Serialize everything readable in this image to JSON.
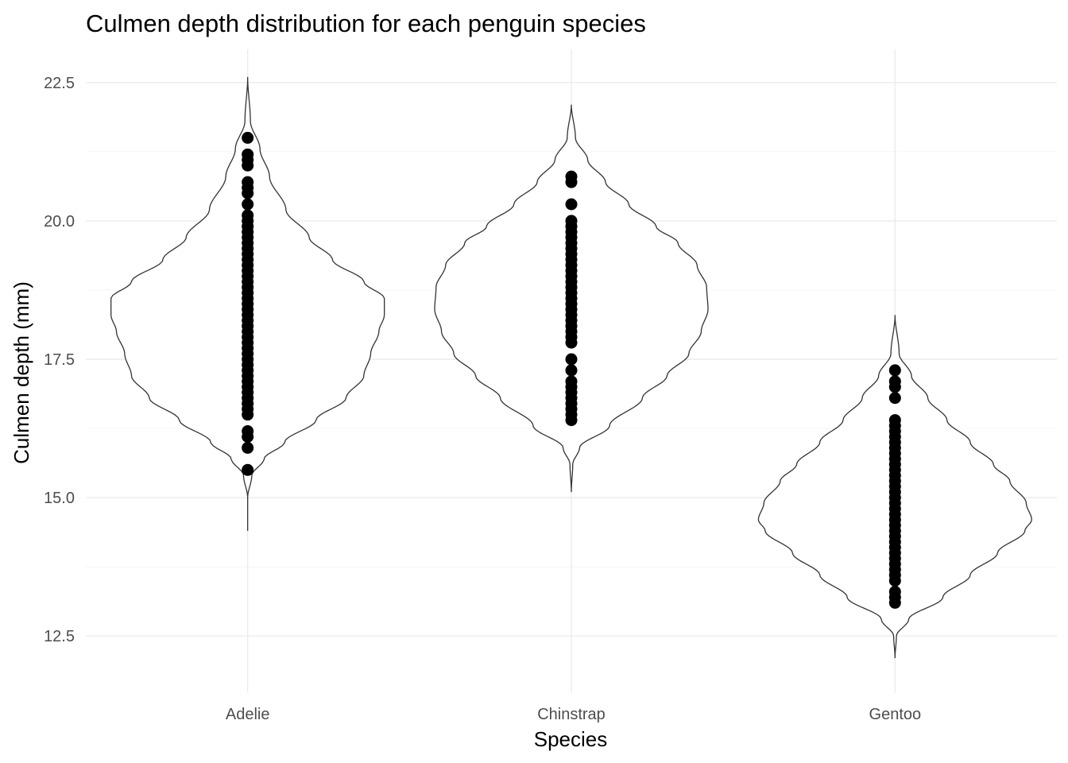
{
  "chart_data": {
    "type": "violin",
    "title": "Culmen depth distribution for each penguin species",
    "xlabel": "Species",
    "ylabel": "Culmen depth (mm)",
    "ylim": [
      11.9,
      23.1
    ],
    "yticks": [
      12.5,
      15.0,
      17.5,
      20.0,
      22.5
    ],
    "ytick_labels": [
      "12.5",
      "15.0",
      "17.5",
      "20.0",
      "22.5"
    ],
    "grid": true,
    "legend": "none",
    "categories": [
      "Adelie",
      "Chinstrap",
      "Gentoo"
    ],
    "series": [
      {
        "category": "Adelie",
        "violin": {
          "y_min": 14.4,
          "y_max": 22.6,
          "profile": [
            [
              14.4,
              0.0
            ],
            [
              15.0,
              0.0
            ],
            [
              15.4,
              0.03
            ],
            [
              15.7,
              0.12
            ],
            [
              16.0,
              0.27
            ],
            [
              16.4,
              0.5
            ],
            [
              16.8,
              0.72
            ],
            [
              17.2,
              0.85
            ],
            [
              17.6,
              0.9
            ],
            [
              18.0,
              0.96
            ],
            [
              18.3,
              1.0
            ],
            [
              18.6,
              1.0
            ],
            [
              18.9,
              0.85
            ],
            [
              19.3,
              0.62
            ],
            [
              19.7,
              0.45
            ],
            [
              20.2,
              0.28
            ],
            [
              20.8,
              0.16
            ],
            [
              21.3,
              0.09
            ],
            [
              21.8,
              0.02
            ],
            [
              22.6,
              0.0
            ]
          ]
        },
        "points": [
          15.5,
          15.9,
          16.1,
          16.2,
          16.5,
          16.6,
          16.7,
          16.8,
          16.9,
          17.0,
          17.1,
          17.2,
          17.3,
          17.4,
          17.5,
          17.6,
          17.7,
          17.8,
          17.9,
          18.0,
          18.1,
          18.2,
          18.3,
          18.4,
          18.5,
          18.6,
          18.7,
          18.8,
          18.9,
          19.0,
          19.1,
          19.2,
          19.3,
          19.4,
          19.5,
          19.6,
          19.7,
          19.8,
          19.9,
          20.0,
          20.1,
          20.3,
          20.5,
          20.6,
          20.7,
          21.0,
          21.1,
          21.2,
          21.5
        ]
      },
      {
        "category": "Chinstrap",
        "violin": {
          "y_min": 15.1,
          "y_max": 22.1,
          "profile": [
            [
              15.1,
              0.0
            ],
            [
              15.6,
              0.01
            ],
            [
              15.9,
              0.06
            ],
            [
              16.3,
              0.28
            ],
            [
              16.8,
              0.52
            ],
            [
              17.2,
              0.7
            ],
            [
              17.6,
              0.86
            ],
            [
              18.0,
              0.95
            ],
            [
              18.4,
              1.0
            ],
            [
              18.8,
              0.99
            ],
            [
              19.2,
              0.92
            ],
            [
              19.6,
              0.78
            ],
            [
              19.9,
              0.62
            ],
            [
              20.3,
              0.42
            ],
            [
              20.7,
              0.25
            ],
            [
              21.1,
              0.12
            ],
            [
              21.5,
              0.03
            ],
            [
              22.1,
              0.0
            ]
          ]
        },
        "points": [
          16.4,
          16.5,
          16.6,
          16.7,
          16.8,
          16.9,
          17.0,
          17.1,
          17.3,
          17.5,
          17.8,
          17.9,
          18.0,
          18.1,
          18.2,
          18.3,
          18.4,
          18.5,
          18.6,
          18.7,
          18.8,
          18.9,
          19.0,
          19.1,
          19.2,
          19.3,
          19.4,
          19.5,
          19.6,
          19.7,
          19.8,
          19.9,
          20.0,
          20.3,
          20.7,
          20.8
        ]
      },
      {
        "category": "Gentoo",
        "violin": {
          "y_min": 12.1,
          "y_max": 18.3,
          "profile": [
            [
              12.1,
              0.0
            ],
            [
              12.5,
              0.01
            ],
            [
              12.8,
              0.1
            ],
            [
              13.2,
              0.35
            ],
            [
              13.6,
              0.55
            ],
            [
              14.0,
              0.75
            ],
            [
              14.4,
              0.95
            ],
            [
              14.6,
              1.0
            ],
            [
              14.9,
              0.96
            ],
            [
              15.3,
              0.84
            ],
            [
              15.6,
              0.72
            ],
            [
              16.0,
              0.55
            ],
            [
              16.4,
              0.38
            ],
            [
              16.8,
              0.24
            ],
            [
              17.2,
              0.12
            ],
            [
              17.6,
              0.03
            ],
            [
              18.3,
              0.0
            ]
          ]
        },
        "points": [
          13.1,
          13.2,
          13.3,
          13.5,
          13.6,
          13.7,
          13.8,
          13.9,
          14.0,
          14.1,
          14.2,
          14.3,
          14.4,
          14.5,
          14.6,
          14.7,
          14.8,
          14.9,
          15.0,
          15.1,
          15.2,
          15.3,
          15.4,
          15.5,
          15.6,
          15.7,
          15.8,
          15.9,
          16.0,
          16.1,
          16.2,
          16.3,
          16.4,
          16.8,
          17.0,
          17.1,
          17.3
        ]
      }
    ],
    "colors": {
      "outline": "#333333",
      "points": "#000000",
      "grid": "#ebebeb"
    }
  }
}
